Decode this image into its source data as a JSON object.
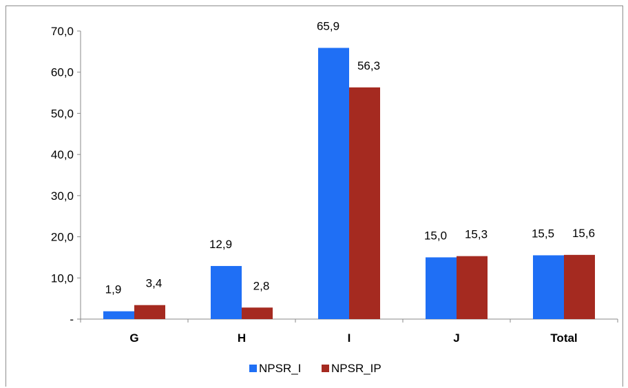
{
  "chart_data": {
    "type": "bar",
    "categories": [
      "G",
      "H",
      "I",
      "J",
      "Total"
    ],
    "series": [
      {
        "name": "NPSR_I",
        "values": [
          1.9,
          12.9,
          65.9,
          15.0,
          15.5
        ],
        "labels": [
          "1,9",
          "12,9",
          "65,9",
          "15,0",
          "15,5"
        ],
        "color": "#1f6ff5"
      },
      {
        "name": "NPSR_IP",
        "values": [
          3.4,
          2.8,
          56.3,
          15.3,
          15.6
        ],
        "labels": [
          "3,4",
          "2,8",
          "56,3",
          "15,3",
          "15,6"
        ],
        "color": "#a52a20"
      }
    ],
    "ylim": [
      0,
      70
    ],
    "yticks": [
      0,
      10,
      20,
      30,
      40,
      50,
      60,
      70
    ],
    "ytick_labels": [
      "-",
      "10,0",
      "20,0",
      "30,0",
      "40,0",
      "50,0",
      "60,0",
      "70,0"
    ],
    "legend": "bottom",
    "grid": false
  }
}
